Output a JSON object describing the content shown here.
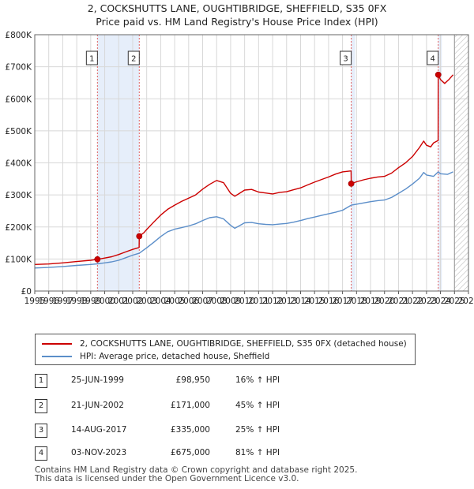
{
  "title_line1": "2, COCKSHUTTS LANE, OUGHTIBRIDGE, SHEFFIELD, S35 0FX",
  "title_line2": "Price paid vs. HM Land Registry's House Price Index (HPI)",
  "colors": {
    "property": "#cc0000",
    "hpi": "#5b8ec9",
    "sale_band": "#e6eefa",
    "grid": "#d8d8d8",
    "marker_line": "#e06060",
    "forecast_hatch": "#bbbbbb"
  },
  "chart_data": {
    "type": "line",
    "title": "2, COCKSHUTTS LANE, OUGHTIBRIDGE, SHEFFIELD, S35 0FX",
    "subtitle": "Price paid vs. HM Land Registry's House Price Index (HPI)",
    "xlim": [
      1995,
      2026
    ],
    "ylim": [
      0,
      800000
    ],
    "x_ticks": [
      "1995",
      "1996",
      "1997",
      "1998",
      "1999",
      "2000",
      "2001",
      "2002",
      "2003",
      "2004",
      "2005",
      "2006",
      "2007",
      "2008",
      "2009",
      "2010",
      "2011",
      "2012",
      "2013",
      "2014",
      "2015",
      "2016",
      "2017",
      "2018",
      "2019",
      "2020",
      "2021",
      "2022",
      "2023",
      "2024",
      "2025",
      "2026"
    ],
    "y_ticks": [
      {
        "value": 0,
        "label": "£0"
      },
      {
        "value": 100000,
        "label": "£100K"
      },
      {
        "value": 200000,
        "label": "£200K"
      },
      {
        "value": 300000,
        "label": "£300K"
      },
      {
        "value": 400000,
        "label": "£400K"
      },
      {
        "value": 500000,
        "label": "£500K"
      },
      {
        "value": 600000,
        "label": "£600K"
      },
      {
        "value": 700000,
        "label": "£700K"
      },
      {
        "value": 800000,
        "label": "£800K"
      }
    ],
    "grid": true,
    "forecast_start": 2025.0,
    "sale_bands": [
      [
        1999.48,
        2002.47
      ],
      [
        2017.62,
        2017.9
      ],
      [
        2023.84,
        2024.1
      ]
    ],
    "series": [
      {
        "name": "2, COCKSHUTTS LANE, OUGHTIBRIDGE, SHEFFIELD, S35 0FX (detached house)",
        "points": [
          [
            1995.0,
            83000
          ],
          [
            1996.0,
            84500
          ],
          [
            1997.0,
            88000
          ],
          [
            1998.0,
            92000
          ],
          [
            1999.0,
            96000
          ],
          [
            1999.48,
            98950
          ],
          [
            2000.0,
            103000
          ],
          [
            2000.5,
            107000
          ],
          [
            2001.0,
            114000
          ],
          [
            2001.5,
            122000
          ],
          [
            2002.0,
            130000
          ],
          [
            2002.46,
            136000
          ],
          [
            2002.47,
            171000
          ],
          [
            2002.8,
            182000
          ],
          [
            2003.0,
            192000
          ],
          [
            2003.5,
            215000
          ],
          [
            2004.0,
            237000
          ],
          [
            2004.5,
            255000
          ],
          [
            2005.0,
            268000
          ],
          [
            2005.5,
            280000
          ],
          [
            2006.0,
            290000
          ],
          [
            2006.5,
            300000
          ],
          [
            2007.0,
            318000
          ],
          [
            2007.5,
            333000
          ],
          [
            2008.0,
            345000
          ],
          [
            2008.5,
            338000
          ],
          [
            2009.0,
            305000
          ],
          [
            2009.3,
            296000
          ],
          [
            2009.6,
            304000
          ],
          [
            2010.0,
            315000
          ],
          [
            2010.5,
            317000
          ],
          [
            2011.0,
            309000
          ],
          [
            2011.5,
            306000
          ],
          [
            2012.0,
            303000
          ],
          [
            2012.5,
            308000
          ],
          [
            2013.0,
            310000
          ],
          [
            2013.5,
            316000
          ],
          [
            2014.0,
            322000
          ],
          [
            2014.5,
            331000
          ],
          [
            2015.0,
            340000
          ],
          [
            2015.5,
            348000
          ],
          [
            2016.0,
            356000
          ],
          [
            2016.5,
            365000
          ],
          [
            2017.0,
            372000
          ],
          [
            2017.61,
            375000
          ],
          [
            2017.62,
            335000
          ],
          [
            2018.0,
            341000
          ],
          [
            2018.5,
            347000
          ],
          [
            2019.0,
            352000
          ],
          [
            2019.5,
            356000
          ],
          [
            2020.0,
            358000
          ],
          [
            2020.5,
            368000
          ],
          [
            2021.0,
            385000
          ],
          [
            2021.5,
            400000
          ],
          [
            2022.0,
            420000
          ],
          [
            2022.5,
            448000
          ],
          [
            2022.8,
            468000
          ],
          [
            2023.0,
            455000
          ],
          [
            2023.3,
            450000
          ],
          [
            2023.5,
            462000
          ],
          [
            2023.83,
            470000
          ],
          [
            2023.84,
            675000
          ],
          [
            2024.0,
            660000
          ],
          [
            2024.3,
            648000
          ],
          [
            2024.6,
            660000
          ],
          [
            2024.9,
            675000
          ]
        ]
      },
      {
        "name": "HPI: Average price, detached house, Sheffield",
        "points": [
          [
            1995.0,
            72000
          ],
          [
            1996.0,
            73500
          ],
          [
            1997.0,
            76500
          ],
          [
            1998.0,
            80000
          ],
          [
            1999.0,
            83000
          ],
          [
            1999.48,
            85000
          ],
          [
            2000.0,
            88000
          ],
          [
            2000.5,
            91000
          ],
          [
            2001.0,
            96000
          ],
          [
            2001.5,
            104000
          ],
          [
            2002.0,
            112000
          ],
          [
            2002.47,
            118000
          ],
          [
            2003.0,
            135000
          ],
          [
            2003.5,
            152000
          ],
          [
            2004.0,
            170000
          ],
          [
            2004.5,
            185000
          ],
          [
            2005.0,
            193000
          ],
          [
            2005.5,
            198000
          ],
          [
            2006.0,
            203000
          ],
          [
            2006.5,
            210000
          ],
          [
            2007.0,
            220000
          ],
          [
            2007.5,
            229000
          ],
          [
            2008.0,
            232000
          ],
          [
            2008.5,
            225000
          ],
          [
            2009.0,
            205000
          ],
          [
            2009.3,
            196000
          ],
          [
            2009.6,
            203000
          ],
          [
            2010.0,
            213000
          ],
          [
            2010.5,
            214000
          ],
          [
            2011.0,
            210000
          ],
          [
            2011.5,
            208000
          ],
          [
            2012.0,
            207000
          ],
          [
            2012.5,
            209000
          ],
          [
            2013.0,
            211000
          ],
          [
            2013.5,
            215000
          ],
          [
            2014.0,
            220000
          ],
          [
            2014.5,
            226000
          ],
          [
            2015.0,
            231000
          ],
          [
            2015.5,
            236000
          ],
          [
            2016.0,
            241000
          ],
          [
            2016.5,
            246000
          ],
          [
            2017.0,
            252000
          ],
          [
            2017.62,
            268000
          ],
          [
            2018.0,
            271000
          ],
          [
            2018.5,
            275000
          ],
          [
            2019.0,
            279000
          ],
          [
            2019.5,
            282000
          ],
          [
            2020.0,
            284000
          ],
          [
            2020.5,
            292000
          ],
          [
            2021.0,
            305000
          ],
          [
            2021.5,
            318000
          ],
          [
            2022.0,
            334000
          ],
          [
            2022.5,
            352000
          ],
          [
            2022.8,
            370000
          ],
          [
            2023.0,
            362000
          ],
          [
            2023.5,
            358000
          ],
          [
            2023.84,
            372000
          ],
          [
            2024.0,
            366000
          ],
          [
            2024.5,
            364000
          ],
          [
            2024.9,
            372000
          ]
        ]
      }
    ],
    "sales": [
      {
        "id": "1",
        "x": 1999.48,
        "price_value": 98950
      },
      {
        "id": "2",
        "x": 2002.47,
        "price_value": 171000
      },
      {
        "id": "3",
        "x": 2017.62,
        "price_value": 335000
      },
      {
        "id": "4",
        "x": 2023.84,
        "price_value": 675000
      }
    ]
  },
  "legend": {
    "property_label": "2, COCKSHUTTS LANE, OUGHTIBRIDGE, SHEFFIELD, S35 0FX (detached house)",
    "hpi_label": "HPI: Average price, detached house, Sheffield"
  },
  "sales_table": [
    {
      "id": "1",
      "date": "25-JUN-1999",
      "price": "£98,950",
      "hpi": "16% ↑ HPI"
    },
    {
      "id": "2",
      "date": "21-JUN-2002",
      "price": "£171,000",
      "hpi": "45% ↑ HPI"
    },
    {
      "id": "3",
      "date": "14-AUG-2017",
      "price": "£335,000",
      "hpi": "25% ↑ HPI"
    },
    {
      "id": "4",
      "date": "03-NOV-2023",
      "price": "£675,000",
      "hpi": "81% ↑ HPI"
    }
  ],
  "footer_line1": "Contains HM Land Registry data © Crown copyright and database right 2025.",
  "footer_line2": "This data is licensed under the Open Government Licence v3.0."
}
